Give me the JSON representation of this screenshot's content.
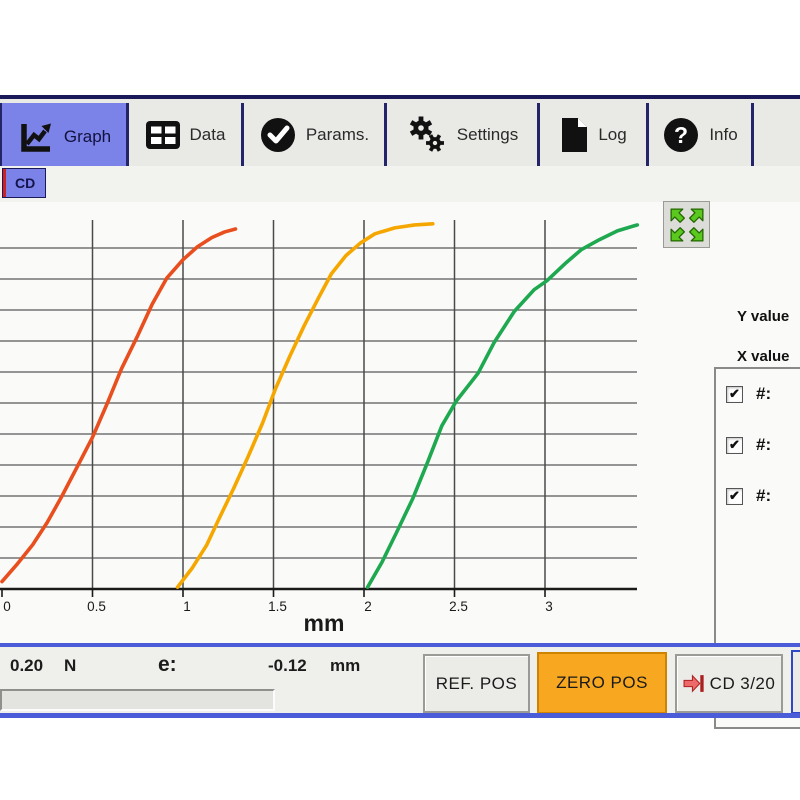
{
  "tabs": {
    "items": [
      {
        "label": "Graph",
        "icon": "line-chart-icon",
        "selected": true
      },
      {
        "label": "Data",
        "icon": "table-icon",
        "selected": false
      },
      {
        "label": "Params.",
        "icon": "check-circle-icon",
        "selected": false
      },
      {
        "label": "Settings",
        "icon": "gears-icon",
        "selected": false
      },
      {
        "label": "Log",
        "icon": "document-icon",
        "selected": false
      },
      {
        "label": "Info",
        "icon": "question-circle-icon",
        "selected": false
      }
    ]
  },
  "subtabs": {
    "items": [
      {
        "label": "CD",
        "selected": true
      }
    ]
  },
  "right_panel": {
    "expand_button_icon": "expand-arrows-icon",
    "y_value_label": "Y value",
    "x_value_label": "X value",
    "series_toggles": [
      {
        "label": "#:",
        "checked": true
      },
      {
        "label": "#:",
        "checked": true
      },
      {
        "label": "#:",
        "checked": true
      }
    ]
  },
  "status_bar": {
    "force_value": "0.20",
    "force_unit": "N",
    "e_label": "e:",
    "e_value": "-0.12",
    "e_unit": "mm",
    "ref_pos_label": "REF. POS",
    "zero_pos_label": "ZERO POS",
    "cd_label": "CD",
    "cd_counter": "3/20",
    "advance_icon": "advance-arrow-icon"
  },
  "colors": {
    "accent_blue": "#4a5cd8",
    "tab_selected": "#7b82e8",
    "navy_border": "#1a1a5a",
    "zero_pos_orange": "#f7a820",
    "expand_arrow_green": "#5ac81e"
  },
  "chart_data": {
    "type": "line",
    "title": "",
    "xlabel": "mm",
    "ylabel": "",
    "xlim": [
      0,
      3.52
    ],
    "x_ticks": [
      0,
      0.5,
      1,
      1.5,
      2,
      2.5,
      3
    ],
    "x_tick_labels": [
      "0",
      "0.5",
      "1",
      "1.5",
      "2",
      "2.5",
      "3"
    ],
    "y_axis_labels_visible": false,
    "grid": true,
    "y_gridline_count": 11,
    "legend_position": "none",
    "series": [
      {
        "name": "curve-1",
        "color": "#e84e1e",
        "x": [
          0,
          0.08,
          0.17,
          0.25,
          0.33,
          0.41,
          0.5,
          0.58,
          0.66,
          0.75,
          0.83,
          0.91,
          1.0,
          1.08,
          1.16,
          1.23,
          1.29
        ],
        "y_pct": [
          2,
          6.5,
          12,
          18,
          25,
          32.5,
          41,
          50,
          59.5,
          68.5,
          77,
          84,
          89,
          92.5,
          95,
          96.5,
          97.3
        ]
      },
      {
        "name": "curve-2",
        "color": "#f5a700",
        "x": [
          0.97,
          1.05,
          1.13,
          1.2,
          1.28,
          1.36,
          1.44,
          1.51,
          1.59,
          1.67,
          1.75,
          1.82,
          1.9,
          1.98,
          2.06,
          2.17,
          2.28,
          2.38
        ],
        "y_pct": [
          0.5,
          5.6,
          11.8,
          19.1,
          27.2,
          35.8,
          44.9,
          54,
          62.9,
          71.2,
          78.8,
          85.2,
          90.1,
          93.5,
          96,
          97.6,
          98.4,
          98.7
        ]
      },
      {
        "name": "curve-3",
        "color": "#1ea850",
        "x": [
          2.02,
          2.1,
          2.18,
          2.27,
          2.35,
          2.43,
          2.51,
          2.63,
          2.72,
          2.83,
          2.94,
          3.01,
          3.11,
          3.2,
          3.3,
          3.4,
          3.51
        ],
        "y_pct": [
          0.5,
          7.3,
          15.3,
          24.5,
          34.1,
          44.1,
          50.8,
          58.3,
          66.7,
          75,
          80.9,
          83.3,
          87.9,
          91.7,
          94.4,
          96.8,
          98.4
        ]
      }
    ]
  }
}
